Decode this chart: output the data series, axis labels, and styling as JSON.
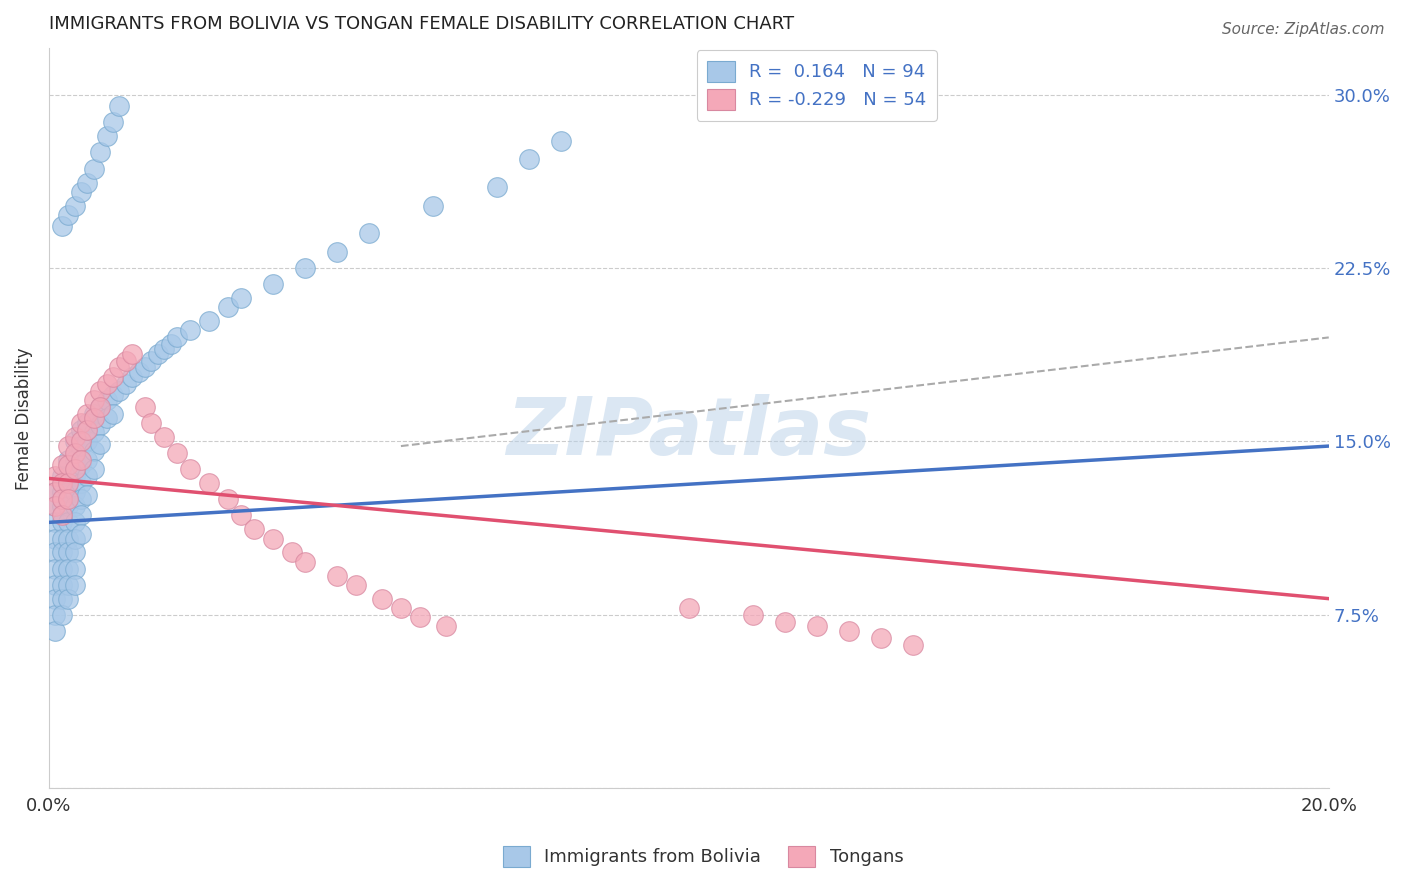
{
  "title": "IMMIGRANTS FROM BOLIVIA VS TONGAN FEMALE DISABILITY CORRELATION CHART",
  "source": "Source: ZipAtlas.com",
  "ylabel": "Female Disability",
  "watermark": "ZIPatlas",
  "xlim": [
    0.0,
    0.2
  ],
  "ylim": [
    0.0,
    0.32
  ],
  "xtick_positions": [
    0.0,
    0.04,
    0.08,
    0.12,
    0.16,
    0.2
  ],
  "xtick_labels": [
    "0.0%",
    "",
    "",
    "",
    "",
    "20.0%"
  ],
  "ytick_positions": [
    0.0,
    0.075,
    0.15,
    0.225,
    0.3
  ],
  "ytick_labels_right": [
    "",
    "7.5%",
    "15.0%",
    "22.5%",
    "30.0%"
  ],
  "color_bolivia": "#a8c8e8",
  "color_tonga": "#f4a8b8",
  "color_line_bolivia": "#4472c4",
  "color_line_tonga": "#e05070",
  "color_dashed": "#aaaaaa",
  "bolivia_line_x": [
    0.0,
    0.2
  ],
  "bolivia_line_y": [
    0.115,
    0.148
  ],
  "tonga_line_x": [
    0.0,
    0.2
  ],
  "tonga_line_y": [
    0.134,
    0.082
  ],
  "dashed_line_x": [
    0.055,
    0.2
  ],
  "dashed_line_y": [
    0.148,
    0.195
  ],
  "bolivia_x": [
    0.001,
    0.001,
    0.001,
    0.001,
    0.001,
    0.001,
    0.001,
    0.001,
    0.001,
    0.001,
    0.002,
    0.002,
    0.002,
    0.002,
    0.002,
    0.002,
    0.002,
    0.002,
    0.002,
    0.002,
    0.003,
    0.003,
    0.003,
    0.003,
    0.003,
    0.003,
    0.003,
    0.003,
    0.003,
    0.003,
    0.004,
    0.004,
    0.004,
    0.004,
    0.004,
    0.004,
    0.004,
    0.004,
    0.004,
    0.004,
    0.005,
    0.005,
    0.005,
    0.005,
    0.005,
    0.005,
    0.005,
    0.006,
    0.006,
    0.006,
    0.006,
    0.006,
    0.007,
    0.007,
    0.007,
    0.007,
    0.008,
    0.008,
    0.008,
    0.009,
    0.009,
    0.01,
    0.01,
    0.011,
    0.012,
    0.013,
    0.014,
    0.015,
    0.016,
    0.017,
    0.018,
    0.019,
    0.02,
    0.022,
    0.025,
    0.028,
    0.03,
    0.035,
    0.04,
    0.045,
    0.05,
    0.06,
    0.07,
    0.075,
    0.08,
    0.002,
    0.003,
    0.004,
    0.005,
    0.006,
    0.007,
    0.008,
    0.009,
    0.01,
    0.011
  ],
  "bolivia_y": [
    0.128,
    0.122,
    0.115,
    0.108,
    0.102,
    0.095,
    0.088,
    0.082,
    0.075,
    0.068,
    0.135,
    0.128,
    0.122,
    0.115,
    0.108,
    0.102,
    0.095,
    0.088,
    0.082,
    0.075,
    0.142,
    0.135,
    0.128,
    0.122,
    0.115,
    0.108,
    0.102,
    0.095,
    0.088,
    0.082,
    0.15,
    0.142,
    0.135,
    0.128,
    0.122,
    0.115,
    0.108,
    0.102,
    0.095,
    0.088,
    0.155,
    0.148,
    0.14,
    0.132,
    0.125,
    0.118,
    0.11,
    0.158,
    0.15,
    0.142,
    0.135,
    0.127,
    0.162,
    0.154,
    0.146,
    0.138,
    0.165,
    0.157,
    0.149,
    0.168,
    0.16,
    0.17,
    0.162,
    0.172,
    0.175,
    0.178,
    0.18,
    0.182,
    0.185,
    0.188,
    0.19,
    0.192,
    0.195,
    0.198,
    0.202,
    0.208,
    0.212,
    0.218,
    0.225,
    0.232,
    0.24,
    0.252,
    0.26,
    0.272,
    0.28,
    0.243,
    0.248,
    0.252,
    0.258,
    0.262,
    0.268,
    0.275,
    0.282,
    0.288,
    0.295
  ],
  "tonga_x": [
    0.001,
    0.001,
    0.001,
    0.002,
    0.002,
    0.002,
    0.002,
    0.003,
    0.003,
    0.003,
    0.003,
    0.004,
    0.004,
    0.004,
    0.005,
    0.005,
    0.005,
    0.006,
    0.006,
    0.007,
    0.007,
    0.008,
    0.008,
    0.009,
    0.01,
    0.011,
    0.012,
    0.013,
    0.015,
    0.016,
    0.018,
    0.02,
    0.022,
    0.025,
    0.028,
    0.03,
    0.032,
    0.035,
    0.038,
    0.04,
    0.045,
    0.048,
    0.052,
    0.055,
    0.058,
    0.062,
    0.1,
    0.11,
    0.115,
    0.12,
    0.125,
    0.13,
    0.135
  ],
  "tonga_y": [
    0.135,
    0.128,
    0.122,
    0.14,
    0.132,
    0.125,
    0.118,
    0.148,
    0.14,
    0.132,
    0.125,
    0.152,
    0.145,
    0.138,
    0.158,
    0.15,
    0.142,
    0.162,
    0.155,
    0.168,
    0.16,
    0.172,
    0.165,
    0.175,
    0.178,
    0.182,
    0.185,
    0.188,
    0.165,
    0.158,
    0.152,
    0.145,
    0.138,
    0.132,
    0.125,
    0.118,
    0.112,
    0.108,
    0.102,
    0.098,
    0.092,
    0.088,
    0.082,
    0.078,
    0.074,
    0.07,
    0.078,
    0.075,
    0.072,
    0.07,
    0.068,
    0.065,
    0.062
  ]
}
